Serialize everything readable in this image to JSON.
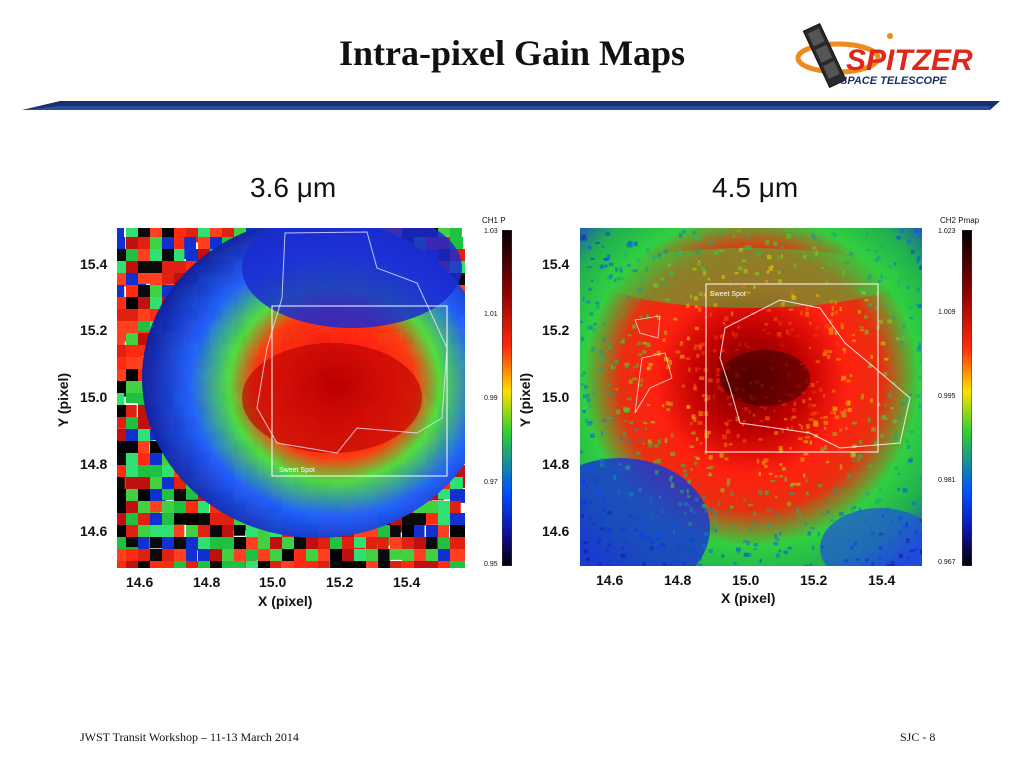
{
  "slide": {
    "title": "Intra-pixel Gain Maps",
    "logo": {
      "line1": "SPITZER",
      "line2": "SPACE TELESCOPE"
    },
    "footer_left": "JWST Transit Workshop – 11-13 March 2014",
    "footer_right": "SJC - 8"
  },
  "panels": [
    {
      "title": "3.6 μm",
      "colorbar_title": "CH1 P",
      "colorbar_ticks": [
        "1.03",
        "1.01",
        "0.99",
        "0.97",
        "0.95"
      ],
      "x_label": "X (pixel)",
      "y_label": "Y (pixel)",
      "x_ticks": [
        "14.6",
        "14.8",
        "15.0",
        "15.2",
        "15.4"
      ],
      "y_ticks": [
        "15.4",
        "15.2",
        "15.0",
        "14.8",
        "14.6"
      ],
      "annotation": "Sweet Spot"
    },
    {
      "title": "4.5 μm",
      "colorbar_title": "CH2 Pmap",
      "colorbar_ticks": [
        "1.023",
        "1.009",
        "0.995",
        "0.981",
        "0.967"
      ],
      "x_label": "X (pixel)",
      "y_label": "Y (pixel)",
      "x_ticks": [
        "14.6",
        "14.8",
        "15.0",
        "15.2",
        "15.4"
      ],
      "y_ticks": [
        "15.4",
        "15.2",
        "15.0",
        "14.8",
        "14.6"
      ],
      "annotation": "Sweet Spot"
    }
  ]
}
